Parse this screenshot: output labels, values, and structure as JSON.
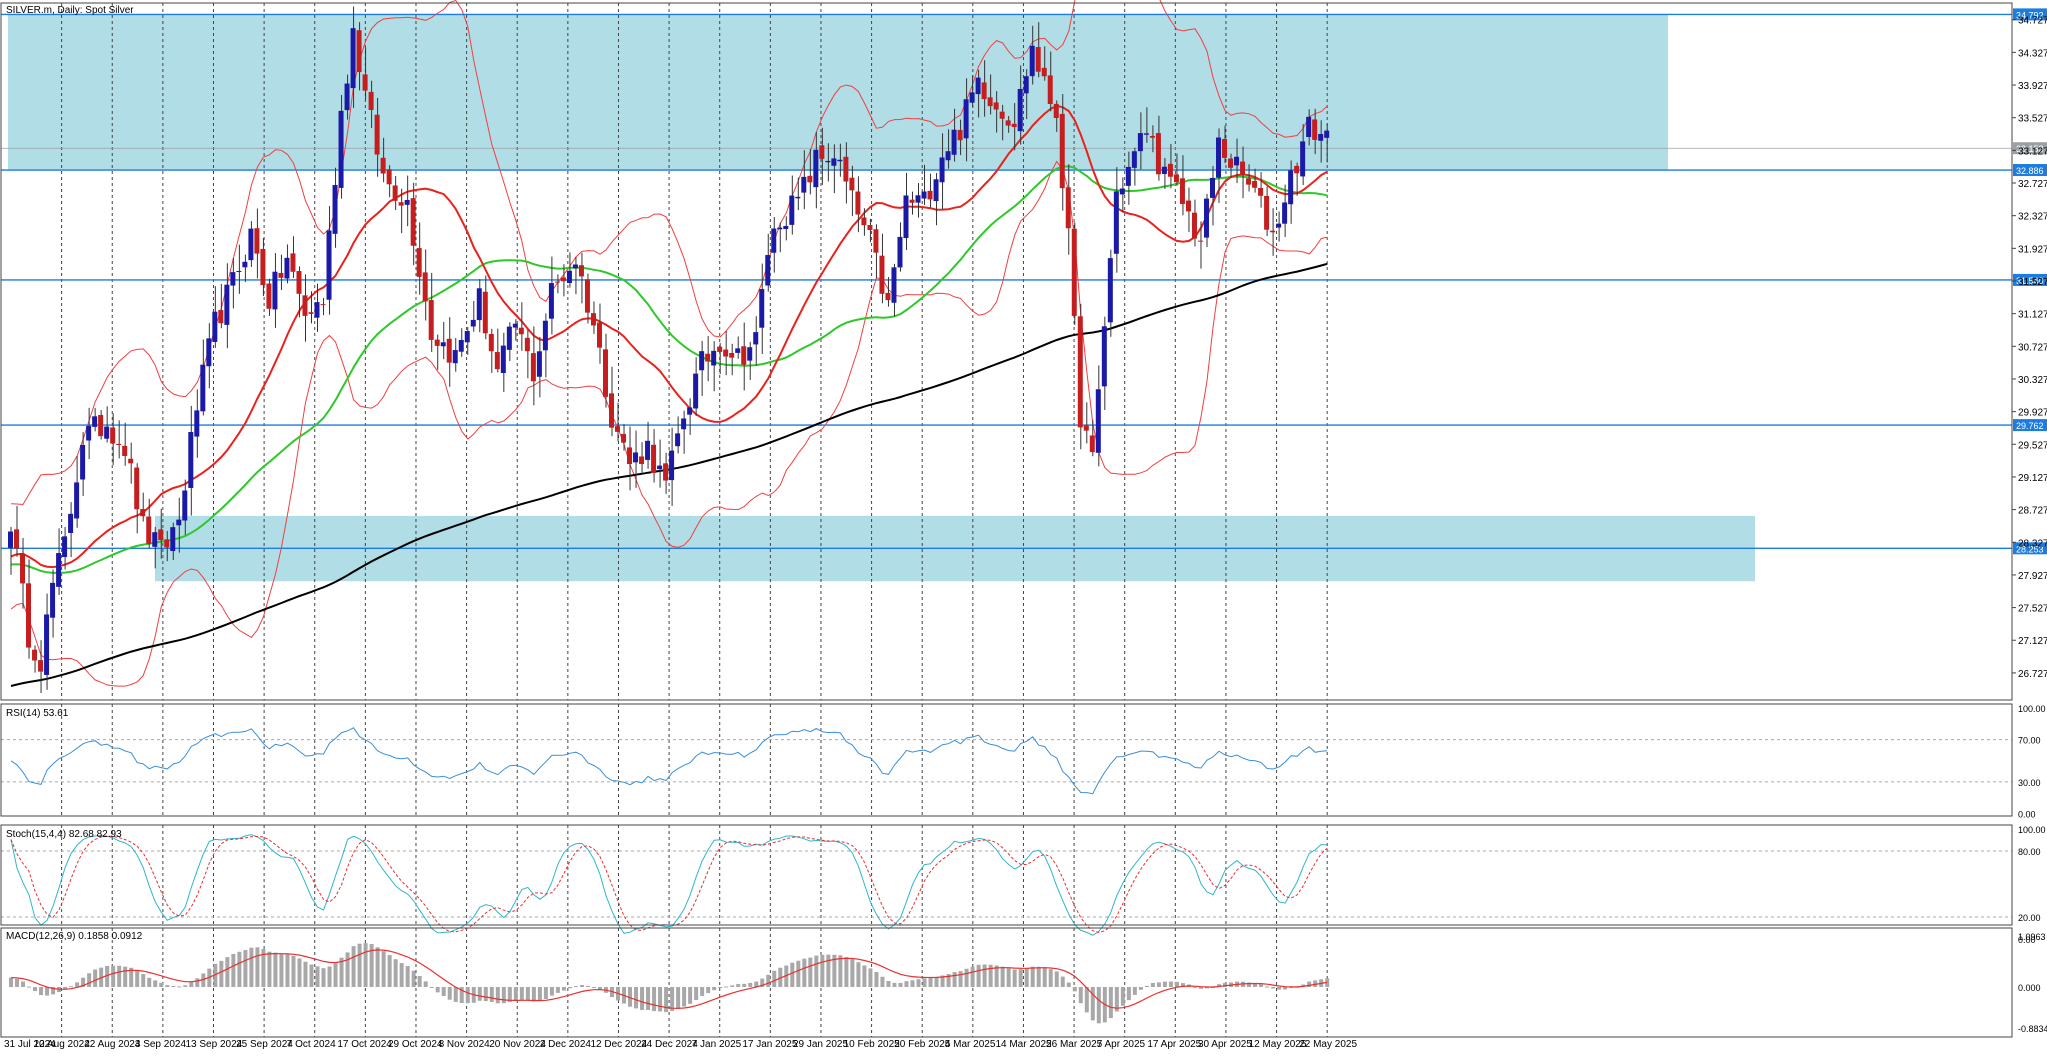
{
  "header": {
    "title": "SILVER.m, Daily:  Spot Silver"
  },
  "colors": {
    "background": "#ffffff",
    "bull_candle": "#1a1aa6",
    "bear_candle": "#c41e1e",
    "zone_fill": "#b0dde6",
    "level_line": "#1c7ce0",
    "ma_fast": "#e8221c",
    "ma_mid": "#2ec82a",
    "ma_slow": "#000000",
    "bollinger": "#f04040",
    "rsi_line": "#3a8fd8",
    "stoch_main": "#31b6c9",
    "stoch_signal": "#e83030",
    "macd_hist": "#a8a8a8",
    "macd_signal": "#e83030",
    "grid": "#444444"
  },
  "chart_data": [
    {
      "type": "candlestick",
      "panel": "price",
      "title": "SILVER.m, Daily:  Spot Silver",
      "xlabel": "",
      "ylabel": "",
      "ylim": [
        26.4,
        34.95
      ],
      "grid": "vertical dashed",
      "y_ticks": [
        "34.727",
        "34.327",
        "33.927",
        "33.527",
        "33.127",
        "32.727",
        "32.327",
        "31.927",
        "31.527",
        "31.127",
        "30.727",
        "30.327",
        "29.927",
        "29.527",
        "29.127",
        "28.727",
        "28.327",
        "27.927",
        "27.527",
        "27.127",
        "26.727"
      ],
      "x_ticks": [
        "31 Jul 2024",
        "12 Aug 2024",
        "22 Aug 2024",
        "3 Sep 2024",
        "13 Sep 2024",
        "25 Sep 2024",
        "7 Oct 2024",
        "17 Oct 2024",
        "29 Oct 2024",
        "8 Nov 2024",
        "20 Nov 2024",
        "2 Dec 2024",
        "12 Dec 2024",
        "24 Dec 2024",
        "7 Jan 2025",
        "17 Jan 2025",
        "29 Jan 2025",
        "10 Feb 2025",
        "20 Feb 2025",
        "4 Mar 2025",
        "14 Mar 2025",
        "26 Mar 2025",
        "7 Apr 2025",
        "17 Apr 2025",
        "30 Apr 2025",
        "12 May 2025",
        "22 May 2025"
      ],
      "close_anchors": {
        "x": [
          0,
          3,
          5,
          7,
          9,
          12,
          16,
          19,
          22,
          25,
          28,
          31,
          34,
          37,
          40,
          43,
          46,
          49,
          52,
          55,
          57,
          59,
          62,
          66,
          70,
          74,
          78,
          81,
          84,
          87,
          90,
          94,
          97,
          100,
          103,
          106,
          109,
          112,
          115,
          118,
          121,
          124,
          126,
          128,
          131,
          134,
          137,
          140,
          143,
          146,
          149,
          152,
          155,
          158,
          161,
          164,
          167,
          170,
          172,
          174,
          176,
          178,
          180,
          182,
          184,
          186,
          189,
          192,
          195,
          198,
          201,
          204,
          207,
          210,
          213,
          216,
          219
        ],
        "close": [
          28.6,
          27.2,
          26.9,
          27.8,
          28.3,
          29.6,
          29.8,
          29.5,
          28.5,
          28.2,
          28.6,
          30.0,
          31.0,
          31.5,
          32.1,
          31.3,
          31.8,
          31.1,
          31.3,
          33.6,
          34.6,
          33.8,
          32.8,
          32.5,
          30.9,
          30.6,
          31.3,
          30.4,
          31.0,
          30.4,
          31.4,
          31.8,
          31.0,
          29.9,
          29.3,
          29.5,
          29.0,
          29.9,
          30.5,
          30.8,
          30.6,
          30.8,
          31.9,
          32.3,
          32.5,
          33.0,
          33.1,
          32.5,
          32.0,
          31.2,
          32.5,
          32.5,
          33.1,
          33.4,
          34.0,
          33.7,
          33.5,
          34.4,
          33.9,
          33.6,
          32.0,
          29.9,
          29.3,
          31.0,
          32.6,
          32.9,
          33.4,
          32.8,
          32.5,
          32.0,
          33.2,
          32.9,
          32.6,
          32.1,
          32.8,
          33.4,
          33.3
        ]
      },
      "moving_averages": [
        {
          "role": "fast",
          "color": "#e8221c"
        },
        {
          "role": "mid",
          "color": "#2ec82a"
        },
        {
          "role": "slow",
          "color": "#000000"
        }
      ],
      "bollinger_bands": {
        "color": "#f04040"
      },
      "zones": [
        {
          "from": 32.886,
          "to": 34.792
        },
        {
          "from": 27.85,
          "to": 28.65
        }
      ],
      "levels": [
        {
          "value": 34.792,
          "label": "34.792"
        },
        {
          "value": 32.886,
          "label": "32.886"
        },
        {
          "value": 31.54,
          "label": "31.540"
        },
        {
          "value": 29.762,
          "label": "29.762"
        },
        {
          "value": 28.253,
          "label": "28.253"
        }
      ],
      "current_price": {
        "value": 33.153,
        "label": "33.153"
      }
    },
    {
      "type": "line",
      "panel": "rsi",
      "title": "RSI(14) 53.61",
      "ylim": [
        0,
        100
      ],
      "y_ticks": [
        "100.00",
        "70.00",
        "30.00",
        "0.00"
      ],
      "levels": [
        70,
        30
      ],
      "current": 53.61
    },
    {
      "type": "line",
      "panel": "stochastic",
      "title": "Stoch(15,4,4) 82.68 82.93",
      "ylim": [
        0,
        100
      ],
      "y_ticks": [
        "100.00",
        "80.00",
        "20.00",
        "0.00"
      ],
      "levels": [
        80,
        20
      ],
      "main_current": 82.68,
      "signal_current": 82.93
    },
    {
      "type": "bar",
      "panel": "macd",
      "title": "MACD(12,26,9) 0.1858 0.0912",
      "ylim": [
        -0.8834,
        1.0963
      ],
      "y_ticks": [
        "1.0963",
        "0.000",
        "-0.8834"
      ],
      "macd_current": 0.1858,
      "signal_current": 0.0912
    }
  ]
}
